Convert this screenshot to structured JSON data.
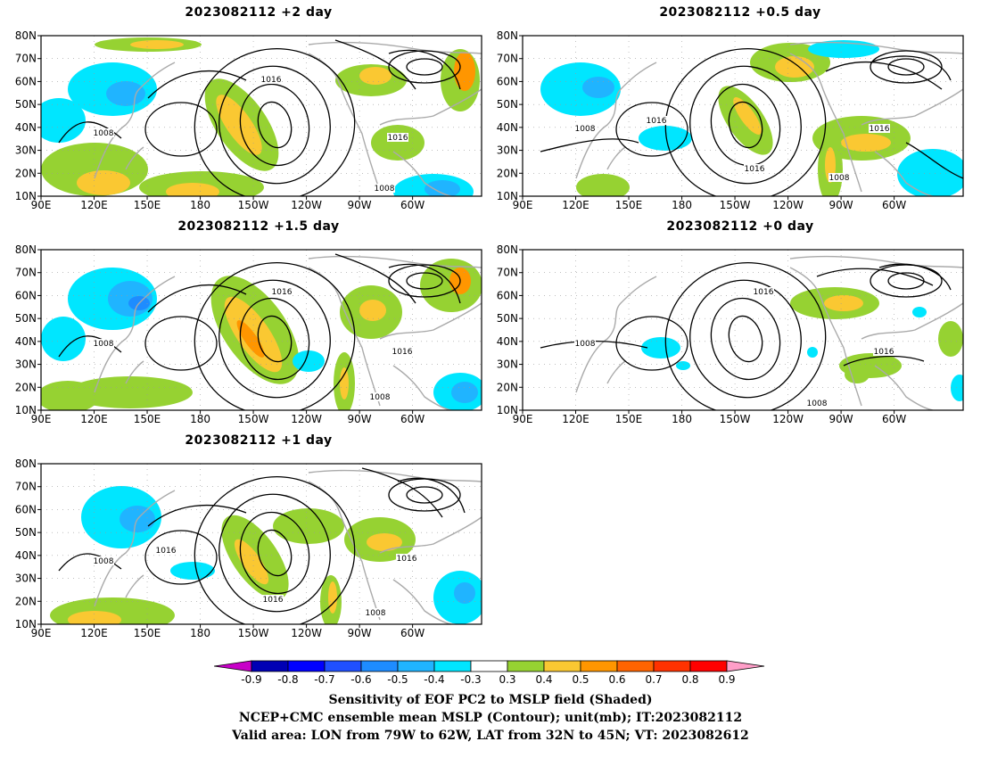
{
  "panels": [
    {
      "id": "p2",
      "title": "2023082112 +2 day"
    },
    {
      "id": "p05",
      "title": "2023082112 +0.5 day"
    },
    {
      "id": "p15",
      "title": "2023082112 +1.5 day"
    },
    {
      "id": "p0",
      "title": "2023082112 +0 day"
    },
    {
      "id": "p1",
      "title": "2023082112 +1 day"
    }
  ],
  "axes": {
    "lat_labels": [
      "80N",
      "70N",
      "60N",
      "50N",
      "40N",
      "30N",
      "20N",
      "10N"
    ],
    "lon_labels": [
      "90E",
      "120E",
      "150E",
      "180",
      "150W",
      "120W",
      "90W",
      "60W"
    ]
  },
  "contour_labels": {
    "p2": [
      "1016",
      "1008",
      "1016",
      "1008"
    ],
    "p05": [
      "1016",
      "1008",
      "1016",
      "1016",
      "1008"
    ],
    "p15": [
      "1016",
      "1008",
      "1016",
      "1008"
    ],
    "p0": [
      "1016",
      "1008",
      "1016",
      "1008"
    ],
    "p1": [
      "1016",
      "1008",
      "1016",
      "1016",
      "1008"
    ]
  },
  "colorbar": {
    "ticks": [
      "-0.9",
      "-0.8",
      "-0.7",
      "-0.6",
      "-0.5",
      "-0.4",
      "-0.3",
      "0.3",
      "0.4",
      "0.5",
      "0.6",
      "0.7",
      "0.8",
      "0.9"
    ],
    "colors": [
      "#0000b4",
      "#0000ff",
      "#2050ff",
      "#1e8cff",
      "#20b4ff",
      "#00e6ff",
      "#ffffff",
      "#96d232",
      "#fac832",
      "#ff9600",
      "#ff6400",
      "#ff3200",
      "#ff0000"
    ],
    "low_extend_color": "#c800c8",
    "high_extend_color": "#ff9ec8"
  },
  "captions": {
    "line1": "Sensitivity of EOF PC2 to MSLP field (Shaded)",
    "line2": "NCEP+CMC ensemble mean MSLP (Contour); unit(mb); IT:2023082112",
    "line3": "Valid area: LON from 79W to 62W, LAT from 32N to 45N; VT: 2023082612"
  }
}
